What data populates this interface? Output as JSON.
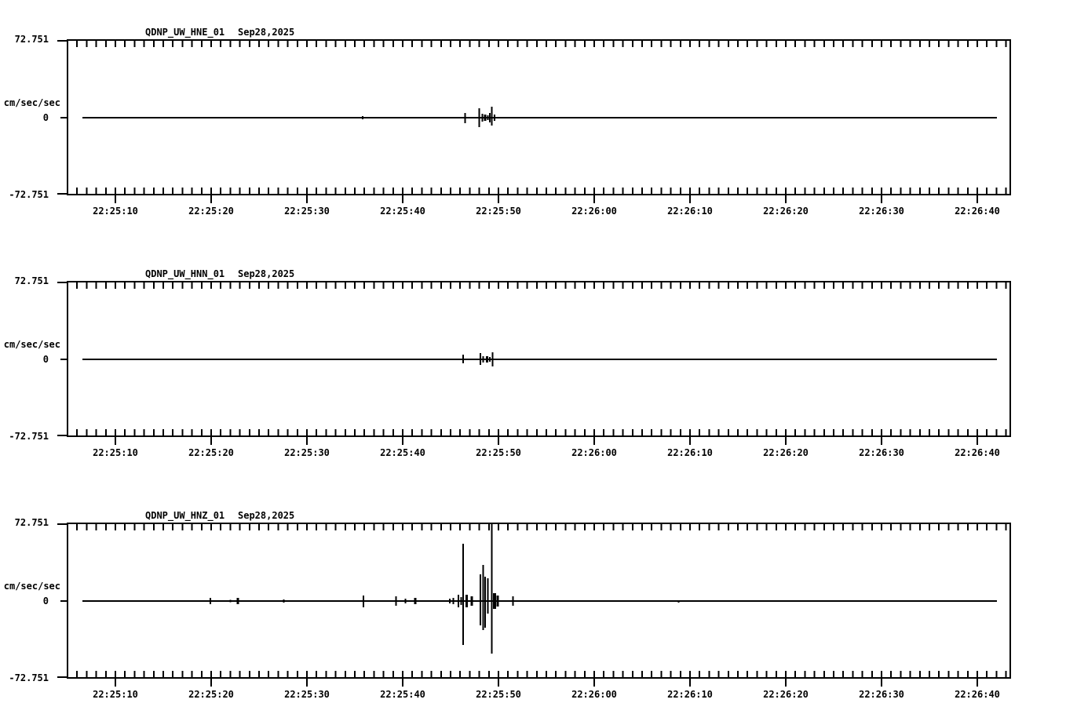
{
  "page": {
    "kind": "seismogram-webicorder",
    "background": "#ffffff",
    "trace_color": "#000000"
  },
  "chart_data": [
    {
      "type": "line",
      "title": "QDNP_UW_HNE_01  Sep28,2025",
      "station": "QDNP_UW_HNE_01",
      "date": "Sep28,2025",
      "ylabel": "cm/sec/sec",
      "yticks": {
        "top": "72.751",
        "zero": "0",
        "bottom": "-72.751"
      },
      "ylim": [
        -72.751,
        72.751
      ],
      "t_unit": "seconds_after_22:25:00",
      "xlim_s": [
        4.9,
        103.4
      ],
      "minor_tick_s": 1,
      "major_tick_s": 10,
      "trace": {
        "start_s": 6.6,
        "end_s": 102.0,
        "baseline": 0
      },
      "xticks": [
        {
          "t": 10,
          "label": "22:25:10"
        },
        {
          "t": 20,
          "label": "22:25:20"
        },
        {
          "t": 30,
          "label": "22:25:30"
        },
        {
          "t": 40,
          "label": "22:25:40"
        },
        {
          "t": 50,
          "label": "22:25:50"
        },
        {
          "t": 60,
          "label": "22:26:00"
        },
        {
          "t": 70,
          "label": "22:26:10"
        },
        {
          "t": 80,
          "label": "22:26:20"
        },
        {
          "t": 90,
          "label": "22:26:30"
        },
        {
          "t": 100,
          "label": "22:26:40"
        }
      ],
      "spikes": [
        {
          "t": 35.8,
          "up": 1.5,
          "dn": 1.5
        },
        {
          "t": 39.9,
          "up": 0.7,
          "dn": 0.7
        },
        {
          "t": 46.5,
          "up": 4.4,
          "dn": 5.1
        },
        {
          "t": 48.0,
          "up": 8.8,
          "dn": 8.8
        },
        {
          "t": 48.3,
          "up": 3.7,
          "dn": 3.7
        },
        {
          "t": 48.6,
          "up": 2.9,
          "dn": 2.9,
          "w": 3
        },
        {
          "t": 48.9,
          "up": 2.2,
          "dn": 2.2
        },
        {
          "t": 49.1,
          "up": 4.4,
          "dn": 4.4
        },
        {
          "t": 49.3,
          "up": 10.3,
          "dn": 7.4
        },
        {
          "t": 49.6,
          "up": 2.9,
          "dn": 2.9
        }
      ]
    },
    {
      "type": "line",
      "title": "QDNP_UW_HNN_01  Sep28,2025",
      "station": "QDNP_UW_HNN_01",
      "date": "Sep28,2025",
      "ylabel": "cm/sec/sec",
      "yticks": {
        "top": "72.751",
        "zero": "0",
        "bottom": "-72.751"
      },
      "ylim": [
        -72.751,
        72.751
      ],
      "t_unit": "seconds_after_22:25:00",
      "xlim_s": [
        4.9,
        103.4
      ],
      "minor_tick_s": 1,
      "major_tick_s": 10,
      "trace": {
        "start_s": 6.6,
        "end_s": 102.0,
        "baseline": 0
      },
      "xticks": [
        {
          "t": 10,
          "label": "22:25:10"
        },
        {
          "t": 20,
          "label": "22:25:20"
        },
        {
          "t": 30,
          "label": "22:25:30"
        },
        {
          "t": 40,
          "label": "22:25:40"
        },
        {
          "t": 50,
          "label": "22:25:50"
        },
        {
          "t": 60,
          "label": "22:26:00"
        },
        {
          "t": 70,
          "label": "22:26:10"
        },
        {
          "t": 80,
          "label": "22:26:20"
        },
        {
          "t": 90,
          "label": "22:26:30"
        },
        {
          "t": 100,
          "label": "22:26:40"
        }
      ],
      "spikes": [
        {
          "t": 30.6,
          "up": 0.7,
          "dn": 0.7
        },
        {
          "t": 43.9,
          "up": 0.7,
          "dn": 0.7
        },
        {
          "t": 44.8,
          "up": 0.7,
          "dn": 0.7
        },
        {
          "t": 46.3,
          "up": 4.4,
          "dn": 3.7
        },
        {
          "t": 48.1,
          "up": 5.9,
          "dn": 5.1
        },
        {
          "t": 48.4,
          "up": 2.9,
          "dn": 2.9
        },
        {
          "t": 48.8,
          "up": 2.9,
          "dn": 2.9,
          "w": 3
        },
        {
          "t": 49.1,
          "up": 2.2,
          "dn": 2.2
        },
        {
          "t": 49.4,
          "up": 6.6,
          "dn": 6.6
        },
        {
          "t": 56.2,
          "up": 0.6,
          "dn": 0.6
        },
        {
          "t": 70.6,
          "up": 0.6,
          "dn": 0.6
        },
        {
          "t": 95.0,
          "up": 0.6,
          "dn": 0.6
        }
      ]
    },
    {
      "type": "line",
      "title": "QDNP_UW_HNZ_01  Sep28,2025",
      "station": "QDNP_UW_HNZ_01",
      "date": "Sep28,2025",
      "ylabel": "cm/sec/sec",
      "yticks": {
        "top": "72.751",
        "zero": "0",
        "bottom": "-72.751"
      },
      "ylim": [
        -72.751,
        72.751
      ],
      "t_unit": "seconds_after_22:25:00",
      "xlim_s": [
        4.9,
        103.4
      ],
      "minor_tick_s": 1,
      "major_tick_s": 10,
      "trace": {
        "start_s": 6.6,
        "end_s": 102.0,
        "baseline": 0
      },
      "xticks": [
        {
          "t": 10,
          "label": "22:25:10"
        },
        {
          "t": 20,
          "label": "22:25:20"
        },
        {
          "t": 30,
          "label": "22:25:30"
        },
        {
          "t": 40,
          "label": "22:25:40"
        },
        {
          "t": 50,
          "label": "22:25:50"
        },
        {
          "t": 60,
          "label": "22:26:00"
        },
        {
          "t": 70,
          "label": "22:26:10"
        },
        {
          "t": 80,
          "label": "22:26:20"
        },
        {
          "t": 90,
          "label": "22:26:30"
        },
        {
          "t": 100,
          "label": "22:26:40"
        }
      ],
      "spikes": [
        {
          "t": 19.9,
          "up": 2.9,
          "dn": 2.9
        },
        {
          "t": 22.0,
          "up": 1.1,
          "dn": 1.1
        },
        {
          "t": 22.8,
          "up": 2.9,
          "dn": 2.9,
          "w": 3
        },
        {
          "t": 27.6,
          "up": 1.5,
          "dn": 1.5
        },
        {
          "t": 35.9,
          "up": 5.1,
          "dn": 5.9
        },
        {
          "t": 39.3,
          "up": 4.4,
          "dn": 4.4
        },
        {
          "t": 40.3,
          "up": 2.2,
          "dn": 2.2
        },
        {
          "t": 41.3,
          "up": 2.9,
          "dn": 2.9,
          "w": 3
        },
        {
          "t": 44.9,
          "up": 2.2,
          "dn": 2.2
        },
        {
          "t": 45.3,
          "up": 2.9,
          "dn": 2.9
        },
        {
          "t": 45.8,
          "up": 5.9,
          "dn": 5.9
        },
        {
          "t": 46.1,
          "up": 3.7,
          "dn": 3.7
        },
        {
          "t": 46.3,
          "up": 53.7,
          "dn": 41.2
        },
        {
          "t": 46.7,
          "up": 5.9,
          "dn": 5.9,
          "w": 3
        },
        {
          "t": 47.2,
          "up": 4.4,
          "dn": 4.4,
          "w": 3
        },
        {
          "t": 48.1,
          "up": 25.0,
          "dn": 22.8
        },
        {
          "t": 48.4,
          "up": 33.8,
          "dn": 27.2
        },
        {
          "t": 48.6,
          "up": 22.8,
          "dn": 25.0
        },
        {
          "t": 48.9,
          "up": 21.3,
          "dn": 11.8
        },
        {
          "t": 49.3,
          "up": 72.7,
          "dn": 49.2
        },
        {
          "t": 49.6,
          "up": 7.4,
          "dn": 7.4,
          "w": 4
        },
        {
          "t": 49.9,
          "up": 5.1,
          "dn": 5.1,
          "w": 3
        },
        {
          "t": 51.5,
          "up": 4.4,
          "dn": 4.4
        },
        {
          "t": 68.8,
          "up": 0.7,
          "dn": 1.5
        }
      ]
    }
  ]
}
